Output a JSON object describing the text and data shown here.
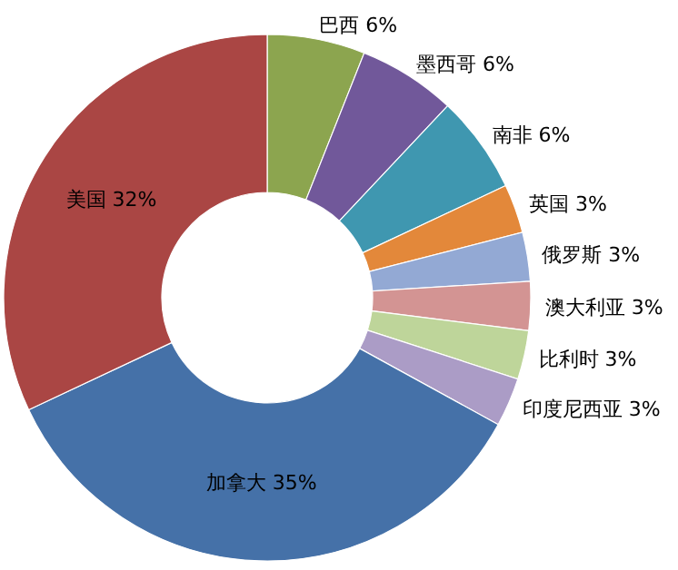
{
  "chart_data": {
    "type": "donut",
    "categories": [
      "巴西",
      "墨西哥",
      "南非",
      "英国",
      "俄罗斯",
      "澳大利亚",
      "比利时",
      "印度尼西亚",
      "加拿大",
      "美国"
    ],
    "values": [
      6,
      6,
      6,
      3,
      3,
      3,
      3,
      3,
      35,
      32
    ],
    "value_labels": [
      "6%",
      "6%",
      "6%",
      "3%",
      "3%",
      "3%",
      "3%",
      "3%",
      "35%",
      "32%"
    ],
    "colors": [
      "#8ca54f",
      "#71589a",
      "#3f97b0",
      "#e3883a",
      "#93a9d4",
      "#d39493",
      "#bed59a",
      "#ab9cc6",
      "#4571a8",
      "#aa4644"
    ]
  }
}
